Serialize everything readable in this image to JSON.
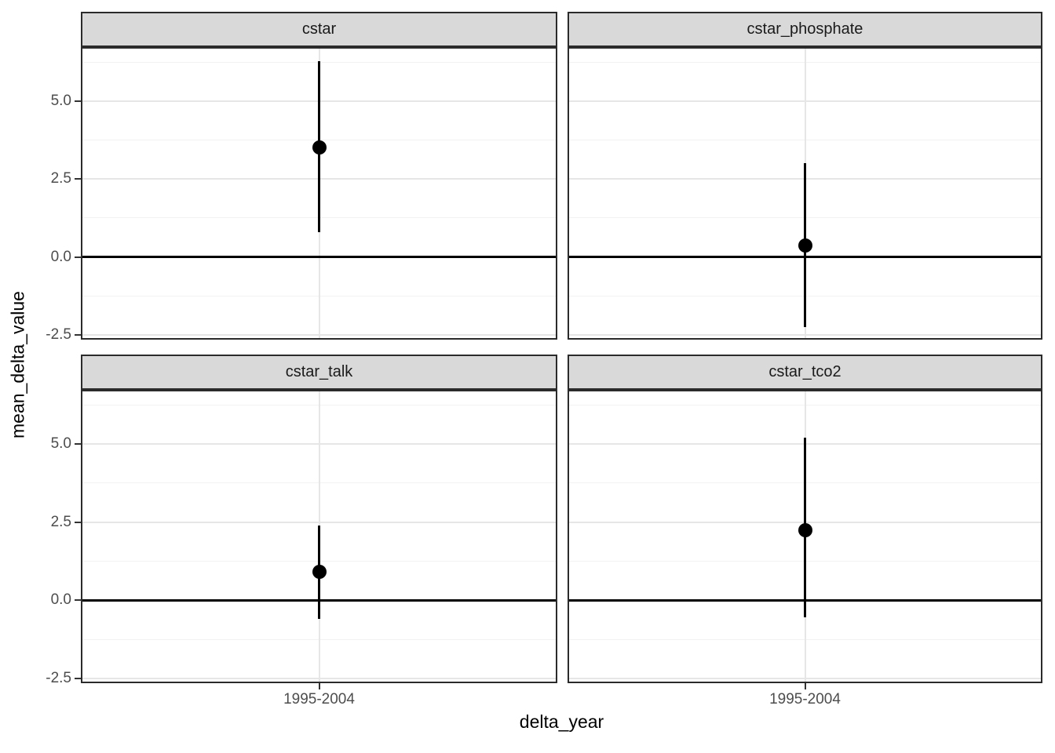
{
  "chart_data": {
    "type": "scatter",
    "subtype": "faceted_pointrange",
    "xlabel": "delta_year",
    "ylabel": "mean_delta_value",
    "x_categories": [
      "1995-2004"
    ],
    "y_tick_labels": [
      "5.0",
      "2.5",
      "0.0",
      "-2.5"
    ],
    "y_tick_values": [
      5.0,
      2.5,
      0.0,
      -2.5
    ],
    "y_minor_values": [
      6.25,
      3.75,
      1.25,
      -1.25
    ],
    "ylim": [
      -2.65,
      6.73
    ],
    "reference_line_y": 0,
    "grid": "on",
    "legend": "none",
    "facets": [
      {
        "label": "cstar",
        "x": "1995-2004",
        "mean": 3.5,
        "ymin": 0.8,
        "ymax": 6.27
      },
      {
        "label": "cstar_phosphate",
        "x": "1995-2004",
        "mean": 0.38,
        "ymin": -2.24,
        "ymax": 3.0
      },
      {
        "label": "cstar_talk",
        "x": "1995-2004",
        "mean": 0.92,
        "ymin": -0.6,
        "ymax": 2.4
      },
      {
        "label": "cstar_tco2",
        "x": "1995-2004",
        "mean": 2.25,
        "ymin": -0.55,
        "ymax": 5.2
      }
    ],
    "colors": {
      "point": "#000000",
      "range_line": "#000000",
      "reference_line": "#000000",
      "strip_fill": "#d9d9d9",
      "panel_border": "#2b2b2b",
      "grid_major": "#e6e6e6",
      "grid_minor": "#f2f2f2",
      "tick_label": "#4d4d4d",
      "axis_title": "#000000"
    }
  }
}
